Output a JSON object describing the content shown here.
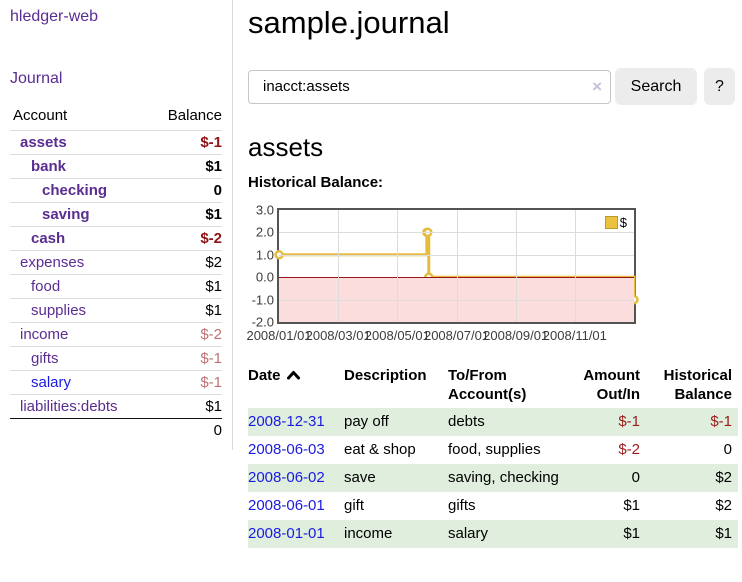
{
  "app": {
    "brand": "hledger-web"
  },
  "colors": {
    "link_purple": "#5a2d91",
    "link_blue": "#1b1be0",
    "negative_strong": "#8f1414",
    "negative_soft": "#bf7272",
    "row_green": "#dfeedd",
    "series_gold": "#e6bc3f",
    "grid_border": "#545454",
    "negative_region": "#fbdddd",
    "zero_line": "#991414",
    "button_bg": "#ececec"
  },
  "sidebar": {
    "journal_link": "Journal",
    "accounts": {
      "header_account": "Account",
      "header_balance": "Balance",
      "rows": [
        {
          "name": "assets",
          "balance": "$-1",
          "indent": 1,
          "bold": true,
          "neg": "strong",
          "link": "purple"
        },
        {
          "name": "bank",
          "balance": "$1",
          "indent": 2,
          "bold": true,
          "neg": "",
          "link": "purple"
        },
        {
          "name": "checking",
          "balance": "0",
          "indent": 3,
          "bold": true,
          "neg": "",
          "link": "purple"
        },
        {
          "name": "saving",
          "balance": "$1",
          "indent": 3,
          "bold": true,
          "neg": "",
          "link": "purple"
        },
        {
          "name": "cash",
          "balance": "$-2",
          "indent": 2,
          "bold": true,
          "neg": "strong",
          "link": "purple"
        },
        {
          "name": "expenses",
          "balance": "$2",
          "indent": 1,
          "bold": false,
          "neg": "",
          "link": "purple"
        },
        {
          "name": "food",
          "balance": "$1",
          "indent": 2,
          "bold": false,
          "neg": "",
          "link": "purple"
        },
        {
          "name": "supplies",
          "balance": "$1",
          "indent": 2,
          "bold": false,
          "neg": "",
          "link": "purple"
        },
        {
          "name": "income",
          "balance": "$-2",
          "indent": 1,
          "bold": false,
          "neg": "soft",
          "link": "purple"
        },
        {
          "name": "gifts",
          "balance": "$-1",
          "indent": 2,
          "bold": false,
          "neg": "soft",
          "link": "purple"
        },
        {
          "name": "salary",
          "balance": "$-1",
          "indent": 2,
          "bold": false,
          "neg": "soft",
          "link": "blue"
        },
        {
          "name": "liabilities:debts",
          "balance": "$1",
          "indent": 1,
          "bold": false,
          "neg": "",
          "link": "purple"
        }
      ],
      "total": "0"
    }
  },
  "main": {
    "title": "sample.journal",
    "search": {
      "value": "inacct:assets",
      "clear_icon": "×",
      "button_label": "Search",
      "help_label": "?"
    },
    "account_heading": "assets",
    "chart_heading": "Historical Balance:"
  },
  "chart_data": {
    "type": "line",
    "step": true,
    "title": "Historical Balance",
    "legend": {
      "label": "$",
      "position": "top-right"
    },
    "ylim": [
      -2,
      3
    ],
    "y_ticks": [
      "3.0",
      "2.0",
      "1.0",
      "0.0",
      "-1.0",
      "-2.0"
    ],
    "x_ticks": [
      "2008/01/01",
      "2008/03/01",
      "2008/05/01",
      "2008/07/01",
      "2008/09/01",
      "2008/11/01"
    ],
    "x_range": [
      "2008-01-01",
      "2008-12-31"
    ],
    "grid": true,
    "series": [
      {
        "name": "$",
        "points": [
          {
            "date": "2008-01-01",
            "value": 1
          },
          {
            "date": "2008-06-01",
            "value": 2
          },
          {
            "date": "2008-06-02",
            "value": 2
          },
          {
            "date": "2008-06-03",
            "value": 0
          },
          {
            "date": "2008-12-31",
            "value": -1
          }
        ]
      }
    ]
  },
  "register": {
    "headers": [
      {
        "line1": "Date",
        "line2": "",
        "align": "left",
        "sorted": true
      },
      {
        "line1": "Description",
        "line2": "",
        "align": "left",
        "sorted": false
      },
      {
        "line1": "To/From",
        "line2": "Account(s)",
        "align": "left",
        "sorted": false
      },
      {
        "line1": "Amount",
        "line2": "Out/In",
        "align": "right",
        "sorted": false
      },
      {
        "line1": "Historical",
        "line2": "Balance",
        "align": "right",
        "sorted": false
      }
    ],
    "rows": [
      {
        "date": "2008-12-31",
        "description": "pay off",
        "accounts": "debts",
        "amount": "$-1",
        "amount_neg": true,
        "balance": "$-1",
        "balance_neg": true,
        "green": true
      },
      {
        "date": "2008-06-03",
        "description": "eat & shop",
        "accounts": "food, supplies",
        "amount": "$-2",
        "amount_neg": true,
        "balance": "0",
        "balance_neg": false,
        "green": false
      },
      {
        "date": "2008-06-02",
        "description": "save",
        "accounts": "saving, checking",
        "amount": "0",
        "amount_neg": false,
        "balance": "$2",
        "balance_neg": false,
        "green": true
      },
      {
        "date": "2008-06-01",
        "description": "gift",
        "accounts": "gifts",
        "amount": "$1",
        "amount_neg": false,
        "balance": "$2",
        "balance_neg": false,
        "green": false
      },
      {
        "date": "2008-01-01",
        "description": "income",
        "accounts": "salary",
        "amount": "$1",
        "amount_neg": false,
        "balance": "$1",
        "balance_neg": false,
        "green": true
      }
    ]
  }
}
